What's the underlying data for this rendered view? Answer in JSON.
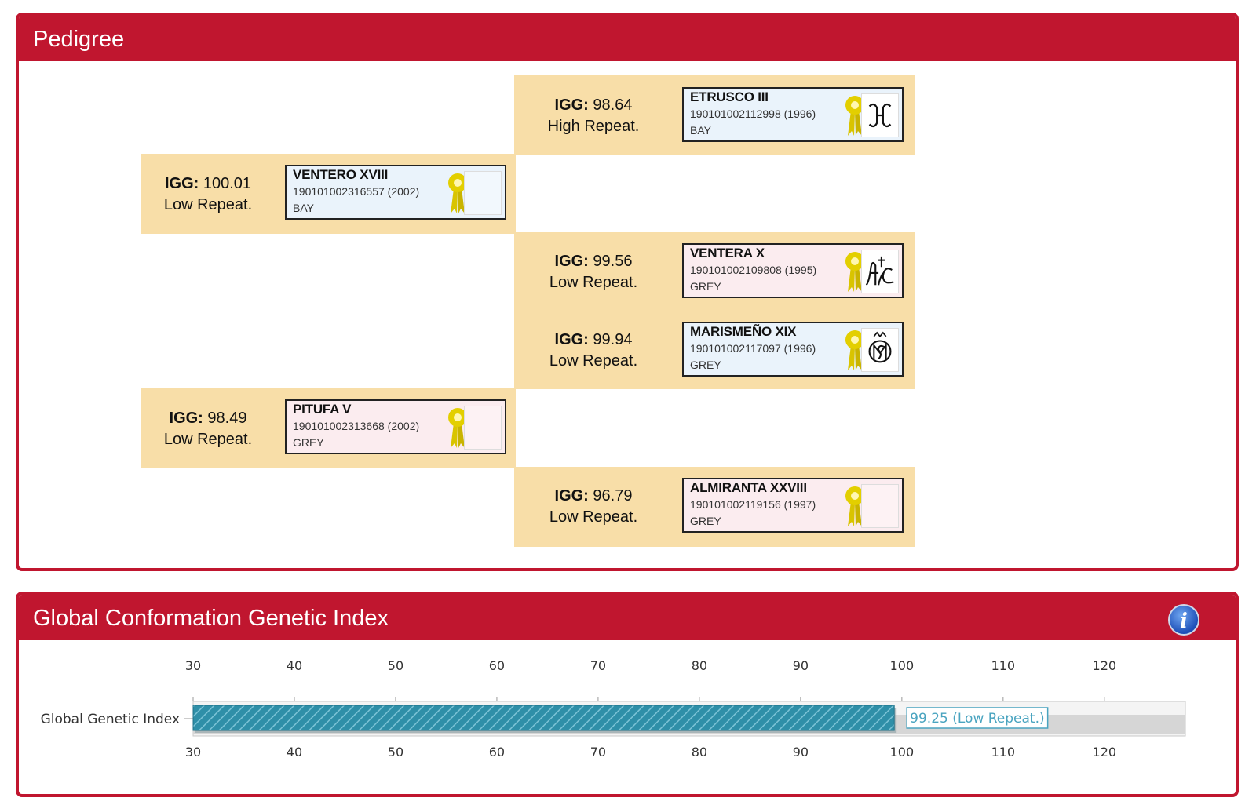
{
  "pedigree": {
    "title": "Pedigree",
    "igg_label": "IGG:",
    "entries": [
      {
        "igg": "98.64",
        "repeat": "High Repeat.",
        "name": "ETRUSCO III",
        "reg": "190101002112998 (1996)",
        "coat": "BAY",
        "sex": "male",
        "brand": "brand-mark-icon"
      },
      {
        "igg": "100.01",
        "repeat": "Low Repeat.",
        "name": "VENTERO XVIII",
        "reg": "190101002316557 (2002)",
        "coat": "BAY",
        "sex": "male",
        "brand": ""
      },
      {
        "igg": "99.56",
        "repeat": "Low Repeat.",
        "name": "VENTERA X",
        "reg": "190101002109808 (1995)",
        "coat": "GREY",
        "sex": "female",
        "brand": "brand-mark-icon"
      },
      {
        "igg": "99.94",
        "repeat": "Low Repeat.",
        "name": "MARISMEÑO XIX",
        "reg": "190101002117097 (1996)",
        "coat": "GREY",
        "sex": "male",
        "brand": "brand-mark-icon"
      },
      {
        "igg": "98.49",
        "repeat": "Low Repeat.",
        "name": "PITUFA V",
        "reg": "190101002313668 (2002)",
        "coat": "GREY",
        "sex": "female",
        "brand": ""
      },
      {
        "igg": "96.79",
        "repeat": "Low Repeat.",
        "name": "ALMIRANTA XXVIII",
        "reg": "190101002119156 (1997)",
        "coat": "GREY",
        "sex": "female",
        "brand": ""
      }
    ]
  },
  "gcgi": {
    "title": "Global Conformation Genetic Index",
    "info_icon": "info-icon",
    "info_glyph": "i"
  },
  "colors": {
    "header_red": "#c0162f",
    "cell_bg": "#f8dea8",
    "bar_fill": "#2f8fa8",
    "value_label": "#4aa4c0"
  },
  "chart_data": {
    "type": "bar",
    "orientation": "horizontal",
    "categories": [
      "Global Genetic Index"
    ],
    "values": [
      99.25
    ],
    "data_labels": [
      "99.25 (Low Repeat.)"
    ],
    "xlim": [
      30,
      128
    ],
    "ticks": [
      30,
      40,
      50,
      60,
      70,
      80,
      90,
      100,
      110,
      120
    ],
    "tick_labels": [
      "30",
      "40",
      "50",
      "60",
      "70",
      "80",
      "90",
      "100",
      "110",
      "120"
    ],
    "axis_top_and_bottom": true,
    "grid": true
  }
}
